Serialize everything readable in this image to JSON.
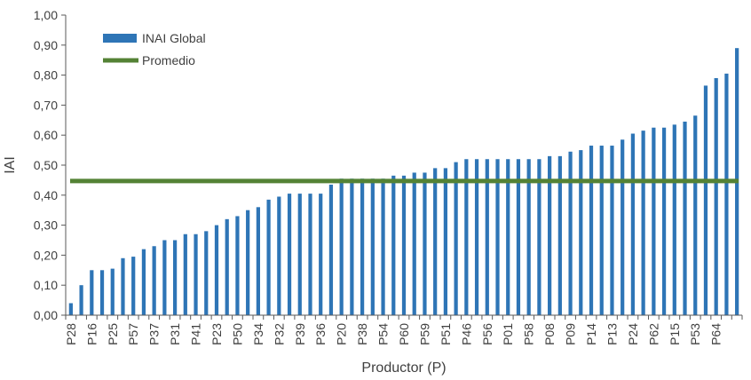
{
  "chart_data": {
    "type": "bar",
    "title": "",
    "xlabel": "Productor (P)",
    "ylabel": "IAI",
    "ylim": [
      0,
      1.0
    ],
    "ytick_step": 0.1,
    "grid": false,
    "legend_position": "top-left",
    "colors": {
      "bar": "#2E75B6",
      "average": "#548235",
      "axis": "#595959",
      "text": "#404040"
    },
    "series": [
      {
        "name": "INAI Global",
        "values": [
          0.04,
          0.1,
          0.15,
          0.15,
          0.155,
          0.19,
          0.195,
          0.22,
          0.23,
          0.25,
          0.25,
          0.27,
          0.27,
          0.28,
          0.3,
          0.32,
          0.33,
          0.35,
          0.36,
          0.385,
          0.395,
          0.405,
          0.405,
          0.405,
          0.405,
          0.435,
          0.455,
          0.455,
          0.455,
          0.455,
          0.455,
          0.465,
          0.465,
          0.475,
          0.475,
          0.49,
          0.49,
          0.51,
          0.52,
          0.52,
          0.52,
          0.52,
          0.52,
          0.52,
          0.52,
          0.52,
          0.53,
          0.53,
          0.545,
          0.55,
          0.565,
          0.565,
          0.565,
          0.585,
          0.605,
          0.615,
          0.625,
          0.625,
          0.635,
          0.645,
          0.665,
          0.765,
          0.79,
          0.805,
          0.89
        ]
      },
      {
        "name": "Promedio",
        "value": 0.447
      }
    ],
    "x_tick_labels": [
      "P28",
      "P16",
      "P25",
      "P57",
      "P37",
      "P31",
      "P41",
      "P23",
      "P50",
      "P34",
      "P32",
      "P39",
      "P36",
      "P20",
      "P38",
      "P54",
      "P60",
      "P59",
      "P51",
      "P46",
      "P56",
      "P01",
      "P58",
      "P08",
      "P09",
      "P14",
      "P13",
      "P24",
      "P62",
      "P15",
      "P53",
      "P64"
    ],
    "y_tick_labels": [
      "0,00",
      "0,10",
      "0,20",
      "0,30",
      "0,40",
      "0,50",
      "0,60",
      "0,70",
      "0,80",
      "0,90",
      "1,00"
    ]
  }
}
